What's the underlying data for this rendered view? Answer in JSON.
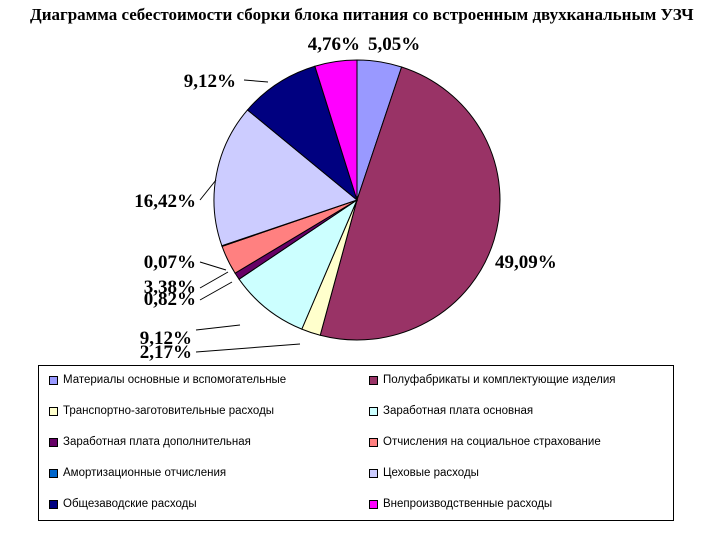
{
  "chart_data": {
    "type": "pie",
    "title": "Диаграмма себестоимости сборки блока питания со встроенным двухканальным УЗЧ",
    "categories": [
      "Материалы основные и вспомогательные",
      "Полуфабрикаты и комплектующие изделия",
      "Транспортно-заготовительные расходы",
      "Заработная плата основная",
      "Заработная плата дополнительная",
      "Отчисления на социальное страхование",
      "Амортизационные отчисления",
      "Цеховые расходы",
      "Общезаводские расходы",
      "Внепроизводственные расходы"
    ],
    "values": [
      5.05,
      49.09,
      2.17,
      9.12,
      0.82,
      3.38,
      0.07,
      16.42,
      9.12,
      4.76
    ],
    "labels": [
      "5,05%",
      "49,09%",
      "2,17%",
      "9,12%",
      "0,82%",
      "3,38%",
      "0,07%",
      "16,42%",
      "9,12%",
      "4,76%"
    ],
    "colors": [
      "#9999FF",
      "#993366",
      "#FFFFCC",
      "#CCFFFF",
      "#660066",
      "#FF8080",
      "#0066CC",
      "#CCCCFF",
      "#000080",
      "#FF00FF"
    ],
    "legend_placement": "bottom"
  }
}
